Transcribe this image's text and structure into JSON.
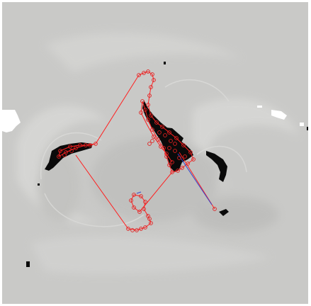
{
  "image": {
    "background_color": "#c9c9c7",
    "swirl_color": "#d8d8d6",
    "shadow_color": "#b8b8b6",
    "dark_region_color": "#0a0a0a",
    "white_region_color": "#ffffff",
    "contour_color": "#ff2020",
    "marker_color": "#e02020",
    "vector_color": "#3344cc"
  }
}
